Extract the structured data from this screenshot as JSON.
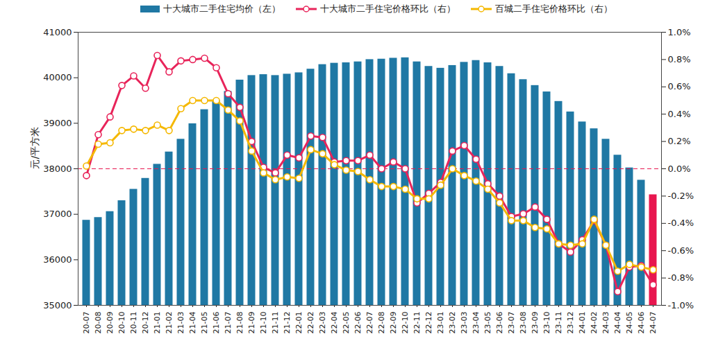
{
  "chart_data": {
    "type": "bar",
    "y_label": "元/平方米",
    "categories": [
      "20-07",
      "20-08",
      "20-09",
      "20-10",
      "20-11",
      "20-12",
      "21-01",
      "21-02",
      "21-03",
      "21-04",
      "21-05",
      "21-06",
      "21-07",
      "21-08",
      "21-09",
      "21-10",
      "21-11",
      "21-12",
      "22-01",
      "22-02",
      "22-03",
      "22-04",
      "22-05",
      "22-06",
      "22-07",
      "22-08",
      "22-09",
      "22-10",
      "22-11",
      "22-12",
      "23-01",
      "23-02",
      "23-03",
      "23-04",
      "23-05",
      "23-06",
      "23-07",
      "23-08",
      "23-09",
      "23-10",
      "23-11",
      "23-12",
      "24-01",
      "24-02",
      "24-03",
      "24-04",
      "24-05",
      "24-06",
      "24-07"
    ],
    "ylim": [
      35000,
      41000
    ],
    "yticks": [
      35000,
      36000,
      37000,
      38000,
      39000,
      40000,
      41000
    ],
    "y2lim": [
      -1.0,
      1.0
    ],
    "y2ticks": [
      {
        "value": -1.0,
        "label": "-1.0%"
      },
      {
        "value": -0.8,
        "label": "-0.8%"
      },
      {
        "value": -0.6,
        "label": "-0.6%"
      },
      {
        "value": -0.4,
        "label": "-0.4%"
      },
      {
        "value": -0.2,
        "label": "-0.2%"
      },
      {
        "value": 0.0,
        "label": "0.0%"
      },
      {
        "value": 0.2,
        "label": "0.2%"
      },
      {
        "value": 0.4,
        "label": "0.4%"
      },
      {
        "value": 0.6,
        "label": "0.6%"
      },
      {
        "value": 0.8,
        "label": "0.8%"
      },
      {
        "value": 1.0,
        "label": "1.0%"
      }
    ],
    "grid": false,
    "legend": "top",
    "hlines": [
      {
        "axis": "y2",
        "value": 0,
        "color": "#e8174f",
        "line_style": "dashed"
      }
    ],
    "series": [
      {
        "name": "十大城市二手住宅均价（左）",
        "type": "bar",
        "color": "#1f78a4",
        "colors": [
          "#1f78a4",
          "#1f78a4",
          "#1f78a4",
          "#1f78a4",
          "#1f78a4",
          "#1f78a4",
          "#1f78a4",
          "#1f78a4",
          "#1f78a4",
          "#1f78a4",
          "#1f78a4",
          "#1f78a4",
          "#1f78a4",
          "#1f78a4",
          "#1f78a4",
          "#1f78a4",
          "#1f78a4",
          "#1f78a4",
          "#1f78a4",
          "#1f78a4",
          "#1f78a4",
          "#1f78a4",
          "#1f78a4",
          "#1f78a4",
          "#1f78a4",
          "#1f78a4",
          "#1f78a4",
          "#1f78a4",
          "#1f78a4",
          "#1f78a4",
          "#1f78a4",
          "#1f78a4",
          "#1f78a4",
          "#1f78a4",
          "#1f78a4",
          "#1f78a4",
          "#1f78a4",
          "#1f78a4",
          "#1f78a4",
          "#1f78a4",
          "#1f78a4",
          "#1f78a4",
          "#1f78a4",
          "#1f78a4",
          "#1f78a4",
          "#1f78a4",
          "#1f78a4",
          "#1f78a4",
          "#e8174f"
        ],
        "values": [
          36870,
          36930,
          37060,
          37300,
          37550,
          37790,
          38100,
          38370,
          38650,
          38990,
          39300,
          39500,
          39700,
          39950,
          40050,
          40070,
          40050,
          40080,
          40110,
          40190,
          40290,
          40320,
          40330,
          40350,
          40400,
          40410,
          40430,
          40440,
          40350,
          40250,
          40210,
          40270,
          40340,
          40380,
          40330,
          40250,
          40090,
          39960,
          39830,
          39690,
          39480,
          39250,
          39030,
          38880,
          38650,
          38300,
          38020,
          37750,
          37430
        ]
      },
      {
        "name": "十大城市二手住宅价格环比（右）",
        "type": "line",
        "axis": "y2",
        "color": "#e8245a",
        "marker": "circle",
        "values": [
          -0.05,
          0.25,
          0.38,
          0.61,
          0.68,
          0.59,
          0.83,
          0.71,
          0.79,
          0.8,
          0.81,
          0.74,
          0.55,
          0.45,
          0.2,
          0.01,
          -0.03,
          0.1,
          0.08,
          0.24,
          0.23,
          0.05,
          0.06,
          0.06,
          0.1,
          0.0,
          0.05,
          0.0,
          -0.25,
          -0.18,
          -0.1,
          0.13,
          0.17,
          0.07,
          -0.11,
          -0.2,
          -0.35,
          -0.33,
          -0.28,
          -0.37,
          -0.55,
          -0.61,
          -0.52,
          -0.38,
          -0.56,
          -0.9,
          -0.72,
          -0.71,
          -0.85
        ]
      },
      {
        "name": "百城二手住宅价格环比（右）",
        "type": "line",
        "axis": "y2",
        "color": "#f5b800",
        "marker": "circle",
        "values": [
          0.02,
          0.18,
          0.19,
          0.28,
          0.29,
          0.28,
          0.32,
          0.28,
          0.44,
          0.5,
          0.5,
          0.5,
          0.43,
          0.35,
          0.13,
          -0.03,
          -0.08,
          -0.06,
          -0.07,
          0.14,
          0.11,
          0.03,
          -0.01,
          -0.02,
          -0.08,
          -0.13,
          -0.13,
          -0.15,
          -0.22,
          -0.22,
          -0.12,
          0.0,
          -0.05,
          -0.09,
          -0.15,
          -0.25,
          -0.38,
          -0.38,
          -0.43,
          -0.44,
          -0.55,
          -0.56,
          -0.55,
          -0.37,
          -0.56,
          -0.75,
          -0.7,
          -0.72,
          -0.74
        ]
      }
    ]
  }
}
